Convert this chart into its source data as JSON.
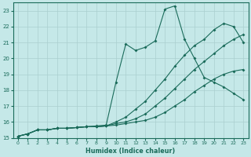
{
  "xlabel": "Humidex (Indice chaleur)",
  "xlim": [
    -0.5,
    23.5
  ],
  "ylim": [
    15,
    23.5
  ],
  "xticks": [
    0,
    1,
    2,
    3,
    4,
    5,
    6,
    7,
    8,
    9,
    10,
    11,
    12,
    13,
    14,
    15,
    16,
    17,
    18,
    19,
    20,
    21,
    22,
    23
  ],
  "yticks": [
    15,
    16,
    17,
    18,
    19,
    20,
    21,
    22,
    23
  ],
  "bg_color": "#c5e8e8",
  "line_color": "#1a6b5a",
  "grid_color": "#aacfcf",
  "lines": [
    {
      "x": [
        0,
        1,
        2,
        3,
        4,
        5,
        6,
        7,
        8,
        9,
        10,
        11,
        12,
        13,
        14,
        15,
        16,
        17,
        18,
        19,
        20,
        21,
        22,
        23
      ],
      "y": [
        15.1,
        15.25,
        15.5,
        15.5,
        15.6,
        15.6,
        15.65,
        15.7,
        15.7,
        15.75,
        15.8,
        15.9,
        16.0,
        16.1,
        16.3,
        16.6,
        17.0,
        17.4,
        17.9,
        18.3,
        18.7,
        19.0,
        19.2,
        19.3
      ]
    },
    {
      "x": [
        0,
        1,
        2,
        3,
        4,
        5,
        6,
        7,
        8,
        9,
        10,
        11,
        12,
        13,
        14,
        15,
        16,
        17,
        18,
        19,
        20,
        21,
        22,
        23
      ],
      "y": [
        15.1,
        15.25,
        15.5,
        15.5,
        15.6,
        15.6,
        15.65,
        15.7,
        15.7,
        15.75,
        15.9,
        16.0,
        16.2,
        16.5,
        17.0,
        17.5,
        18.1,
        18.7,
        19.3,
        19.8,
        20.3,
        20.8,
        21.2,
        21.5
      ]
    },
    {
      "x": [
        0,
        1,
        2,
        3,
        4,
        5,
        6,
        7,
        8,
        9,
        10,
        11,
        12,
        13,
        14,
        15,
        16,
        17,
        18,
        19,
        20,
        21,
        22,
        23
      ],
      "y": [
        15.1,
        15.25,
        15.5,
        15.5,
        15.6,
        15.6,
        15.65,
        15.7,
        15.7,
        15.75,
        16.0,
        16.3,
        16.8,
        17.3,
        18.0,
        18.7,
        19.5,
        20.2,
        20.8,
        21.2,
        21.8,
        22.2,
        22.0,
        21.0
      ]
    },
    {
      "x": [
        0,
        1,
        2,
        3,
        4,
        5,
        6,
        7,
        8,
        9,
        10,
        11,
        12,
        13,
        14,
        15,
        16,
        17,
        18,
        19,
        20,
        21,
        22,
        23
      ],
      "y": [
        15.1,
        15.25,
        15.5,
        15.5,
        15.6,
        15.6,
        15.65,
        15.7,
        15.75,
        15.8,
        18.5,
        20.9,
        20.5,
        20.7,
        21.1,
        23.1,
        23.3,
        21.2,
        20.0,
        18.8,
        18.5,
        18.2,
        17.8,
        17.4
      ]
    }
  ]
}
